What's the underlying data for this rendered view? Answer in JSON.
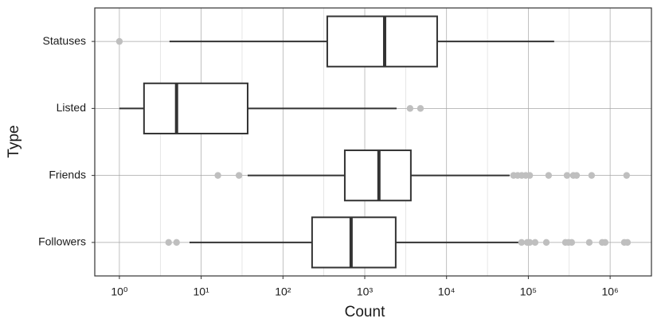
{
  "chart_data": {
    "type": "boxplot",
    "x_label": "Count",
    "y_label": "Type",
    "log_x": true,
    "grid": true,
    "box_color": "#333333",
    "box_fill": "#ffffff",
    "outlier_color": "#bfbfbf",
    "xlim": [
      0.5,
      3200000
    ],
    "xticks": [
      {
        "value": 1,
        "label": "10⁰"
      },
      {
        "value": 10,
        "label": "10¹"
      },
      {
        "value": 100,
        "label": "10²"
      },
      {
        "value": 1000,
        "label": "10³"
      },
      {
        "value": 10000,
        "label": "10⁴"
      },
      {
        "value": 100000,
        "label": "10⁵"
      },
      {
        "value": 1000000,
        "label": "10⁶"
      }
    ],
    "categories": [
      "Statuses",
      "Listed",
      "Friends",
      "Followers"
    ],
    "boxes": [
      {
        "whisker_low": 4.1,
        "q1": 348,
        "median": 1750,
        "q3": 7680,
        "whisker_high": 207000,
        "outliers": [
          1
        ]
      },
      {
        "whisker_low": 1,
        "q1": 2,
        "median": 5,
        "q3": 37,
        "whisker_high": 2450,
        "outliers": [
          3580,
          4800
        ]
      },
      {
        "whisker_low": 37,
        "q1": 570,
        "median": 1490,
        "q3": 3660,
        "whisker_high": 59000,
        "outliers": [
          16,
          29,
          66000,
          74000,
          83000,
          93000,
          104000,
          177000,
          297000,
          355000,
          389000,
          594000,
          1590000
        ]
      },
      {
        "whisker_low": 7.2,
        "q1": 227,
        "median": 681,
        "q3": 2390,
        "whisker_high": 77000,
        "outliers": [
          4,
          5,
          82600,
          97000,
          104000,
          121000,
          166000,
          284000,
          310000,
          339000,
          556000,
          800000,
          870000,
          1490000,
          1630000
        ]
      }
    ]
  }
}
